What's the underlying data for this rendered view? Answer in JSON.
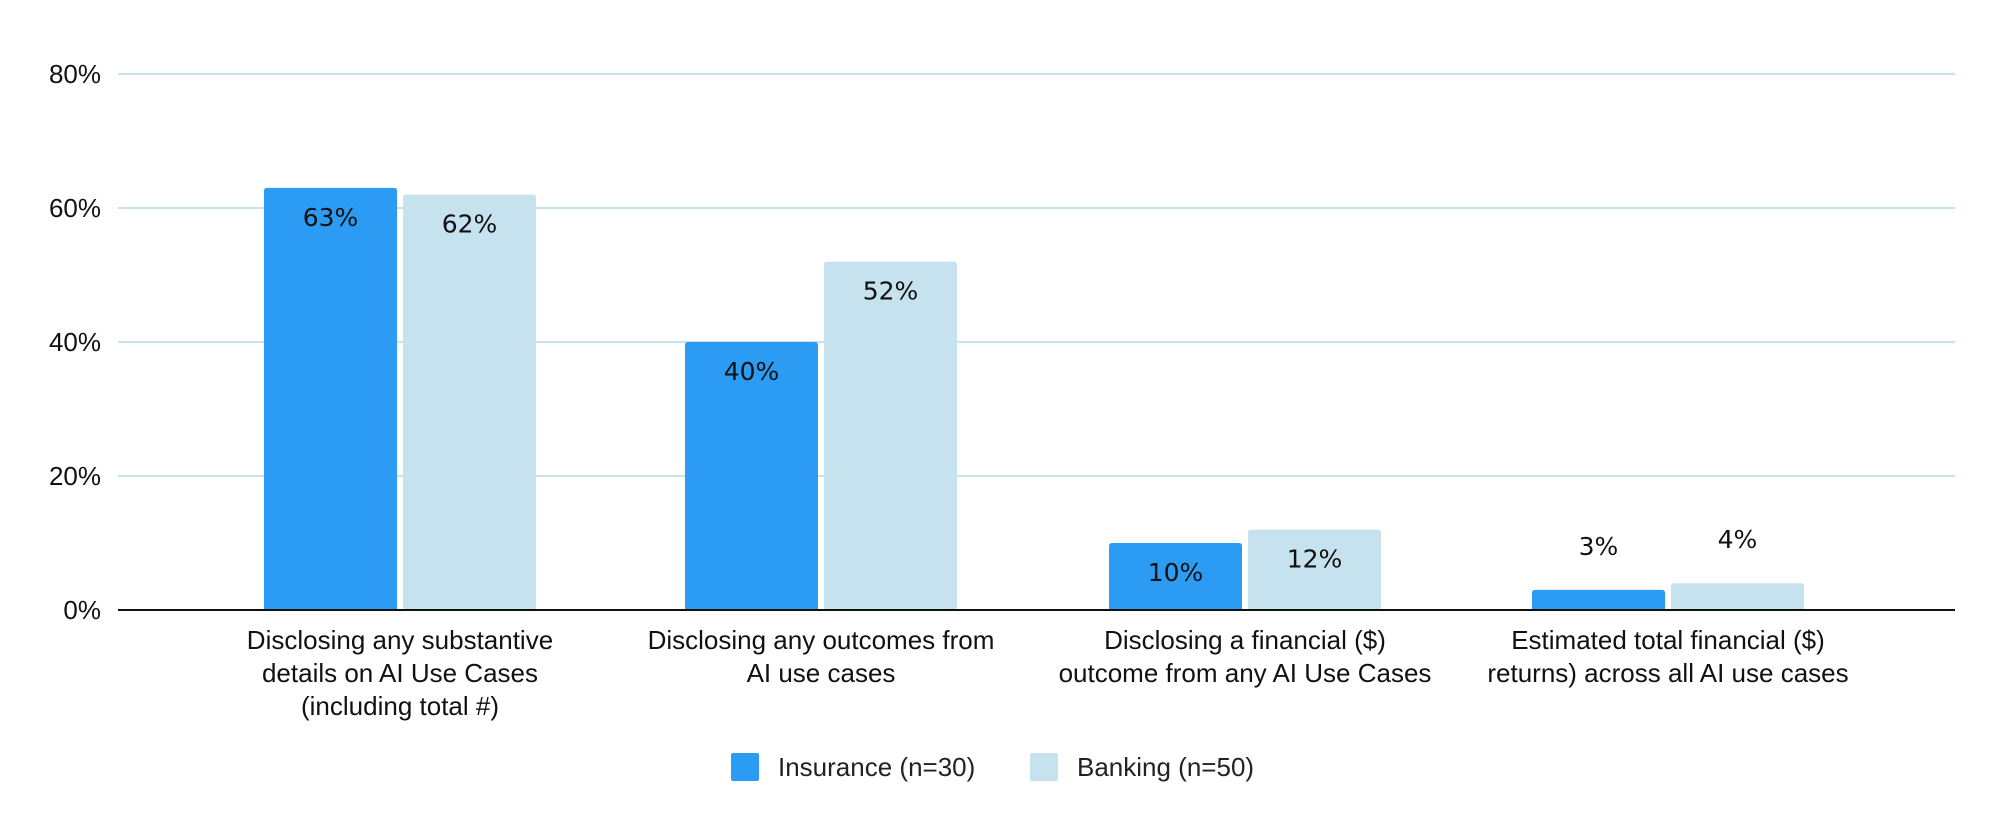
{
  "chart_data": {
    "type": "bar",
    "title": "",
    "xlabel": "",
    "ylabel": "",
    "ylim": [
      0,
      80
    ],
    "yticks": [
      0,
      20,
      40,
      60,
      80
    ],
    "ytick_labels": [
      "0%",
      "20%",
      "40%",
      "60%",
      "80%"
    ],
    "grid": true,
    "legend_position": "bottom",
    "categories": [
      [
        "Disclosing any substantive",
        "details on AI Use Cases",
        "(including total #)"
      ],
      [
        "Disclosing any outcomes from",
        "AI use cases"
      ],
      [
        "Disclosing a financial ($)",
        "outcome from any AI Use Cases"
      ],
      [
        "Estimated total financial ($)",
        "returns) across all AI use cases"
      ]
    ],
    "series": [
      {
        "name": "Insurance (n=30)",
        "color": "#2b9bf4",
        "values": [
          63,
          40,
          10,
          3
        ],
        "labels": [
          "63%",
          "40%",
          "10%",
          "3%"
        ]
      },
      {
        "name": "Banking (n=50)",
        "color": "#c6e2ef",
        "values": [
          62,
          52,
          12,
          4
        ],
        "labels": [
          "62%",
          "52%",
          "12%",
          "4%"
        ]
      }
    ],
    "gridline_color": "#c7e3ec",
    "axis_color": "#111111"
  }
}
